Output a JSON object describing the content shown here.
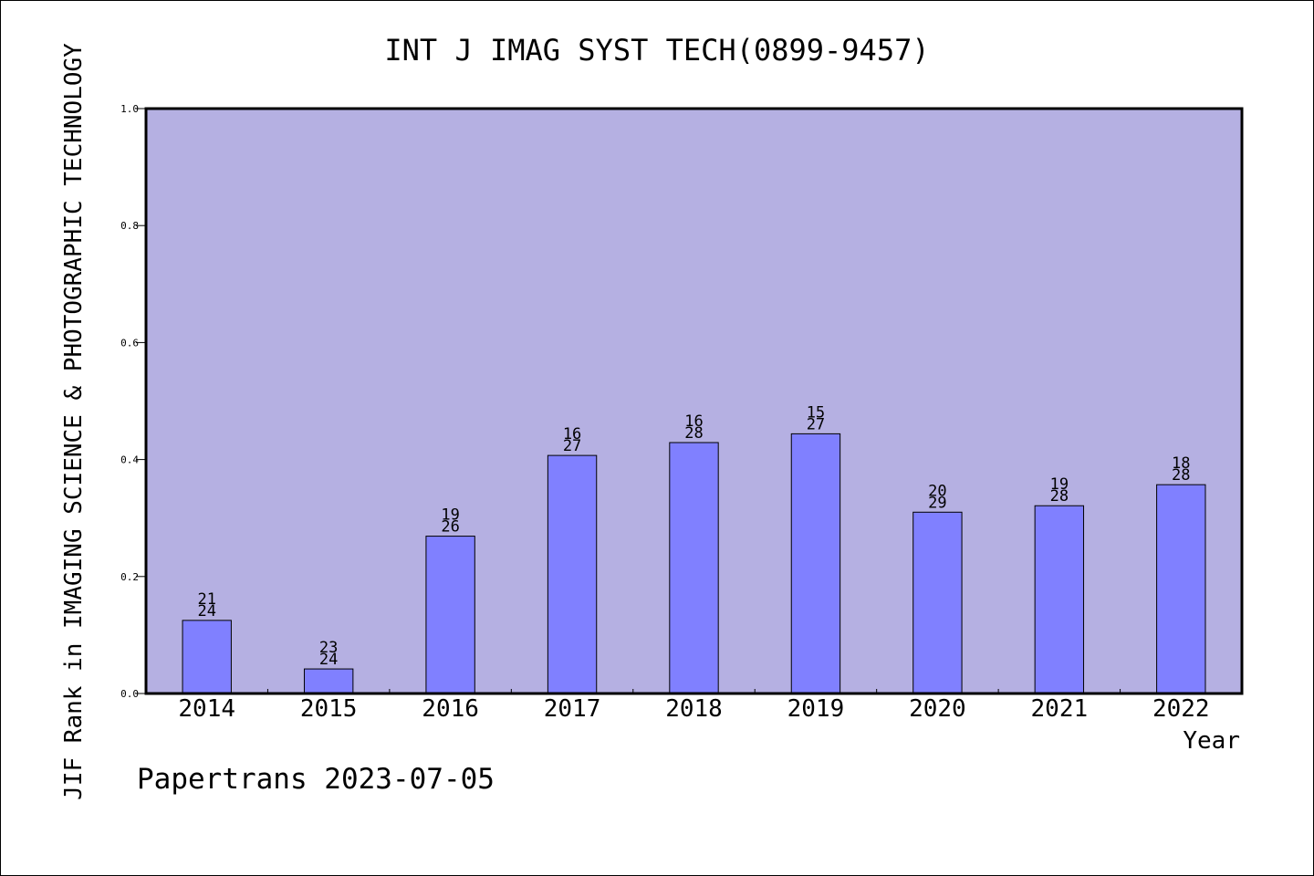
{
  "chart_data": {
    "type": "bar",
    "title": "INT J IMAG SYST TECH(0899-9457)",
    "xlabel": "Year",
    "ylabel": "JIF Rank in IMAGING SCIENCE & PHOTOGRAPHIC TECHNOLOGY",
    "footer": "Papertrans 2023-07-05",
    "ylim": [
      0,
      1.0
    ],
    "yticks": [
      "0.0",
      "0.2",
      "0.4",
      "0.6",
      "0.8",
      "1.0"
    ],
    "categories": [
      "2014",
      "2015",
      "2016",
      "2017",
      "2018",
      "2019",
      "2020",
      "2021",
      "2022"
    ],
    "values": [
      0.125,
      0.042,
      0.269,
      0.407,
      0.429,
      0.444,
      0.31,
      0.321,
      0.357
    ],
    "rank": [
      "21",
      "23",
      "19",
      "16",
      "16",
      "15",
      "20",
      "19",
      "18"
    ],
    "total": [
      "24",
      "24",
      "26",
      "27",
      "28",
      "27",
      "29",
      "28",
      "28"
    ],
    "colors": {
      "plot_bg": "#b5b0e2",
      "bar": "#8080ff",
      "frame": "#000000"
    },
    "grid": false
  }
}
